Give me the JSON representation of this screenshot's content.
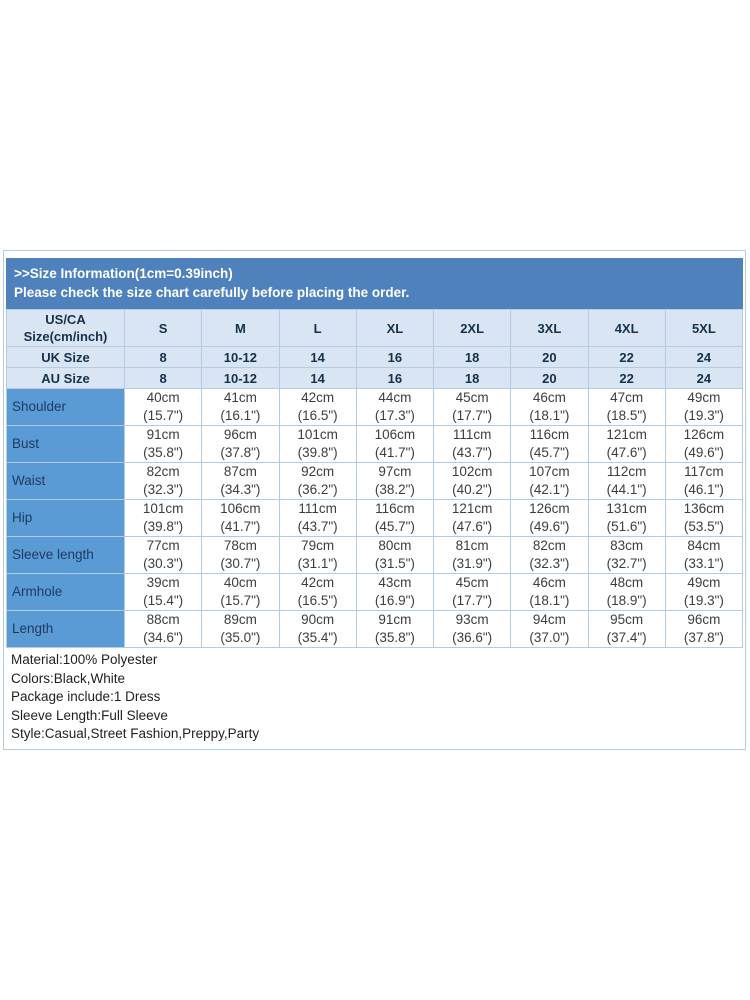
{
  "banner": {
    "line1": ">>Size Information(1cm=0.39inch)",
    "line2": "Please check the size chart carefully before placing the order."
  },
  "table": {
    "corner_line1": "US/CA",
    "corner_line2": "Size(cm/inch)",
    "sizes": [
      "S",
      "M",
      "L",
      "XL",
      "2XL",
      "3XL",
      "4XL",
      "5XL"
    ],
    "uk": {
      "label": "UK Size",
      "values": [
        "8",
        "10-12",
        "14",
        "16",
        "18",
        "20",
        "22",
        "24"
      ]
    },
    "au": {
      "label": "AU Size",
      "values": [
        "8",
        "10-12",
        "14",
        "16",
        "18",
        "20",
        "22",
        "24"
      ]
    },
    "measurements": [
      {
        "label": "Shoulder",
        "cm": [
          "40cm",
          "41cm",
          "42cm",
          "44cm",
          "45cm",
          "46cm",
          "47cm",
          "49cm"
        ],
        "inch": [
          "(15.7\")",
          "(16.1\")",
          "(16.5\")",
          "(17.3\")",
          "(17.7\")",
          "(18.1\")",
          "(18.5\")",
          "(19.3\")"
        ]
      },
      {
        "label": "Bust",
        "cm": [
          "91cm",
          "96cm",
          "101cm",
          "106cm",
          "111cm",
          "116cm",
          "121cm",
          "126cm"
        ],
        "inch": [
          "(35.8\")",
          "(37.8\")",
          "(39.8\")",
          "(41.7\")",
          "(43.7\")",
          "(45.7\")",
          "(47.6\")",
          "(49.6\")"
        ]
      },
      {
        "label": "Waist",
        "cm": [
          "82cm",
          "87cm",
          "92cm",
          "97cm",
          "102cm",
          "107cm",
          "112cm",
          "117cm"
        ],
        "inch": [
          "(32.3\")",
          "(34.3\")",
          "(36.2\")",
          "(38.2\")",
          "(40.2\")",
          "(42.1\")",
          "(44.1\")",
          "(46.1\")"
        ]
      },
      {
        "label": "Hip",
        "cm": [
          "101cm",
          "106cm",
          "111cm",
          "116cm",
          "121cm",
          "126cm",
          "131cm",
          "136cm"
        ],
        "inch": [
          "(39.8\")",
          "(41.7\")",
          "(43.7\")",
          "(45.7\")",
          "(47.6\")",
          "(49.6\")",
          "(51.6\")",
          "(53.5\")"
        ]
      },
      {
        "label": "Sleeve length",
        "cm": [
          "77cm",
          "78cm",
          "79cm",
          "80cm",
          "81cm",
          "82cm",
          "83cm",
          "84cm"
        ],
        "inch": [
          "(30.3\")",
          "(30.7\")",
          "(31.1\")",
          "(31.5\")",
          "(31.9\")",
          "(32.3\")",
          "(32.7\")",
          "(33.1\")"
        ]
      },
      {
        "label": "Armhole",
        "cm": [
          "39cm",
          "40cm",
          "42cm",
          "43cm",
          "45cm",
          "46cm",
          "48cm",
          "49cm"
        ],
        "inch": [
          "(15.4\")",
          "(15.7\")",
          "(16.5\")",
          "(16.9\")",
          "(17.7\")",
          "(18.1\")",
          "(18.9\")",
          "(19.3\")"
        ]
      },
      {
        "label": "Length",
        "cm": [
          "88cm",
          "89cm",
          "90cm",
          "91cm",
          "93cm",
          "94cm",
          "95cm",
          "96cm"
        ],
        "inch": [
          "(34.6\")",
          "(35.0\")",
          "(35.4\")",
          "(35.8\")",
          "(36.6\")",
          "(37.0\")",
          "(37.4\")",
          "(37.8\")"
        ]
      }
    ]
  },
  "details": {
    "lines": [
      "Material:100% Polyester",
      "Colors:Black,White",
      "Package include:1 Dress",
      "Sleeve Length:Full Sleeve",
      "Style:Casual,Street Fashion,Preppy,Party"
    ]
  },
  "colors": {
    "banner_bg": "#4f81bd",
    "header_bg": "#d9e5f2",
    "label_col_bg": "#5b9bd5",
    "border": "#b3cce6",
    "banner_text": "#ffffff",
    "header_text": "#16304d",
    "cell_text": "#3d3d3d"
  }
}
